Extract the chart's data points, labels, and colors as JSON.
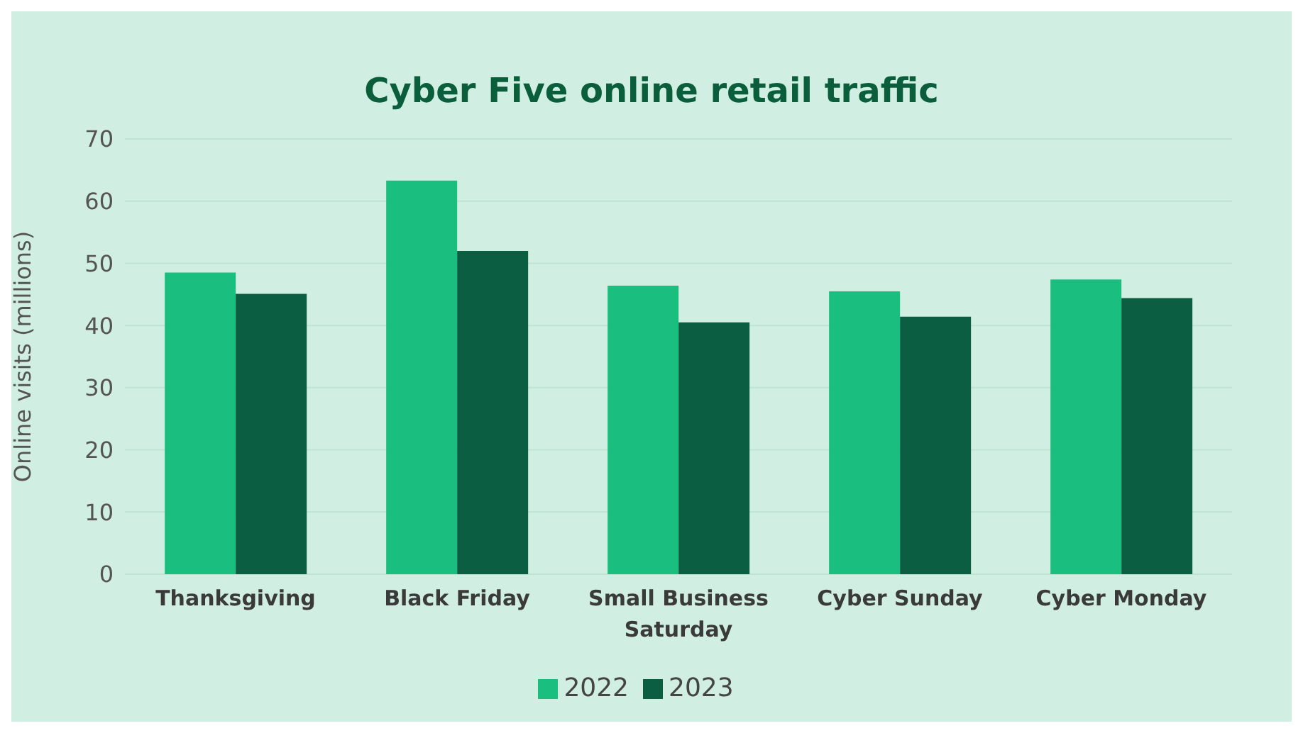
{
  "chart_data": {
    "type": "bar",
    "title": "Cyber Five online retail traffic",
    "ylabel": "Online visits (millions)",
    "categories": [
      "Thanksgiving",
      "Black Friday",
      "Small Business Saturday",
      "Cyber Sunday",
      "Cyber Monday"
    ],
    "series": [
      {
        "name": "2022",
        "color": "#1abf80",
        "values": [
          48.5,
          63.3,
          46.4,
          45.5,
          47.4
        ]
      },
      {
        "name": "2023",
        "color": "#0b5e42",
        "values": [
          45.1,
          52.0,
          40.5,
          41.4,
          44.4
        ]
      }
    ],
    "ylim": [
      0,
      70
    ],
    "yticks": [
      0,
      10,
      20,
      30,
      40,
      50,
      60,
      70
    ],
    "grid": "y",
    "legend": "bottom"
  }
}
